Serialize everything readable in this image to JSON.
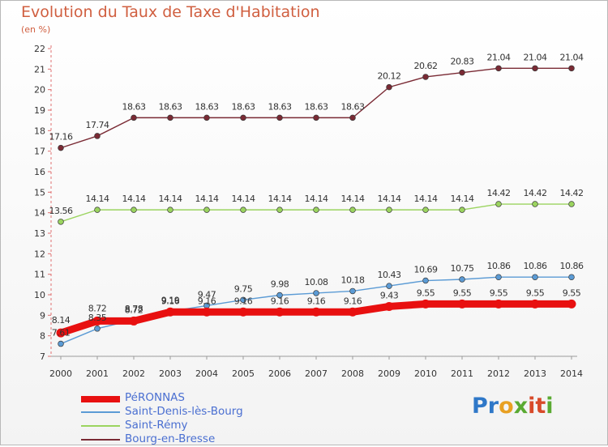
{
  "header": {
    "title": "Evolution du Taux de Taxe d'Habitation",
    "subtitle": "(en %)"
  },
  "logo": {
    "letters": [
      {
        "ch": "P",
        "color": "#2f78c8"
      },
      {
        "ch": "r",
        "color": "#2f78c8"
      },
      {
        "ch": "o",
        "color": "#e8a022"
      },
      {
        "ch": "x",
        "color": "#5aaa32"
      },
      {
        "ch": "i",
        "color": "#d84a2a"
      },
      {
        "ch": "t",
        "color": "#d84a2a"
      },
      {
        "ch": "i",
        "color": "#5aaa32"
      }
    ]
  },
  "chart_data": {
    "type": "line",
    "title": "Evolution du Taux de Taxe d'Habitation",
    "ylabel": "(en %)",
    "xlabel": "",
    "x": [
      2000,
      2001,
      2002,
      2003,
      2004,
      2005,
      2006,
      2007,
      2008,
      2009,
      2010,
      2011,
      2012,
      2013,
      2014
    ],
    "ylim": [
      7,
      22
    ],
    "yticks": [
      7,
      8,
      9,
      10,
      11,
      12,
      13,
      14,
      15,
      16,
      17,
      18,
      19,
      20,
      21,
      22
    ],
    "grid": false,
    "legend_position": "bottom-left",
    "series": [
      {
        "name": "PéRONNAS",
        "color": "#e81010",
        "values": [
          8.14,
          8.72,
          8.72,
          9.16,
          9.16,
          9.16,
          9.16,
          9.16,
          9.16,
          9.43,
          9.55,
          9.55,
          9.55,
          9.55,
          9.55
        ],
        "labels": [
          "8.14",
          "8.72",
          "8.72",
          "9.16",
          "9.16",
          "9.16",
          "9.16",
          "9.16",
          "9.16",
          "9.43",
          "9.55",
          "9.55",
          "9.55",
          "9.55",
          "9.55"
        ]
      },
      {
        "name": "Saint-Denis-lès-Bourg",
        "color": "#5b9bd5",
        "values": [
          7.61,
          8.35,
          8.78,
          9.19,
          9.47,
          9.75,
          9.98,
          10.08,
          10.18,
          10.43,
          10.69,
          10.75,
          10.86,
          10.86,
          10.86
        ],
        "labels": [
          "7.61",
          "8.35",
          "8.78",
          "9.19",
          "9.47",
          "9.75",
          "9.98",
          "10.08",
          "10.18",
          "10.43",
          "10.69",
          "10.75",
          "10.86",
          "10.86",
          "10.86"
        ]
      },
      {
        "name": "Saint-Rémy",
        "color": "#9bd45f",
        "values": [
          13.56,
          14.14,
          14.14,
          14.14,
          14.14,
          14.14,
          14.14,
          14.14,
          14.14,
          14.14,
          14.14,
          14.14,
          14.42,
          14.42,
          14.42
        ],
        "labels": [
          "13.56",
          "14.14",
          "14.14",
          "14.14",
          "14.14",
          "14.14",
          "14.14",
          "14.14",
          "14.14",
          "14.14",
          "14.14",
          "14.14",
          "14.42",
          "14.42",
          "14.42"
        ]
      },
      {
        "name": "Bourg-en-Bresse",
        "color": "#7a2a34",
        "values": [
          17.16,
          17.74,
          18.63,
          18.63,
          18.63,
          18.63,
          18.63,
          18.63,
          18.63,
          20.12,
          20.62,
          20.83,
          21.04,
          21.04,
          21.04
        ],
        "labels": [
          "17.16",
          "17.74",
          "18.63",
          "18.63",
          "18.63",
          "18.63",
          "18.63",
          "18.63",
          "18.63",
          "20.12",
          "20.62",
          "20.83",
          "21.04",
          "21.04",
          "21.04"
        ]
      }
    ]
  }
}
